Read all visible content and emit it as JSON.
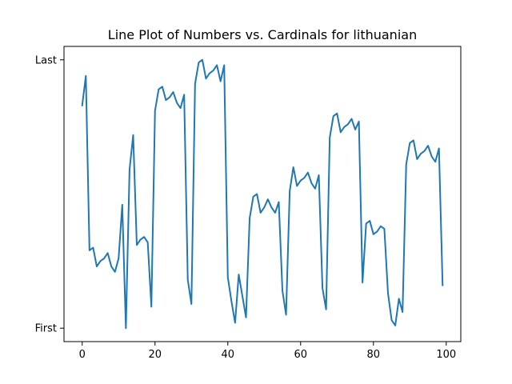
{
  "chart_data": {
    "type": "line",
    "title": "Line Plot of Numbers vs. Cardinals for lithuanian",
    "xlabel": "",
    "ylabel": "",
    "x_ticks": [
      0,
      20,
      40,
      60,
      80,
      100
    ],
    "x_tick_labels": [
      "0",
      "20",
      "40",
      "60",
      "80",
      "100"
    ],
    "y_tick_labels": [
      "First",
      "Last"
    ],
    "xlim": [
      -5,
      104
    ],
    "ylim": [
      -0.05,
      1.05
    ],
    "grid": false,
    "legend": "none",
    "line_color": "#1f77b4",
    "series": [
      {
        "x": [
          0,
          1,
          2,
          3,
          4,
          5,
          6,
          7,
          8,
          9,
          10,
          11,
          12,
          13,
          14,
          15,
          16,
          17,
          18,
          19,
          20,
          21,
          22,
          23,
          24,
          25,
          26,
          27,
          28,
          29,
          30,
          31,
          32,
          33,
          34,
          35,
          36,
          37,
          38,
          39,
          40,
          41,
          42,
          43,
          44,
          45,
          46,
          47,
          48,
          49,
          50,
          51,
          52,
          53,
          54,
          55,
          56,
          57,
          58,
          59,
          60,
          61,
          62,
          63,
          64,
          65,
          66,
          67,
          68,
          69,
          70,
          71,
          72,
          73,
          74,
          75,
          76,
          77,
          78,
          79,
          80,
          81,
          82,
          83,
          84,
          85,
          86,
          87,
          88,
          89,
          90,
          91,
          92,
          93,
          94,
          95,
          96,
          97,
          98,
          99
        ],
        "values": [
          0.83,
          0.94,
          0.29,
          0.3,
          0.23,
          0.25,
          0.26,
          0.28,
          0.23,
          0.21,
          0.26,
          0.46,
          0.0,
          0.59,
          0.72,
          0.31,
          0.33,
          0.34,
          0.32,
          0.08,
          0.81,
          0.89,
          0.9,
          0.85,
          0.86,
          0.88,
          0.84,
          0.82,
          0.87,
          0.18,
          0.09,
          0.91,
          0.99,
          1.0,
          0.93,
          0.95,
          0.96,
          0.98,
          0.92,
          0.98,
          0.19,
          0.1,
          0.02,
          0.2,
          0.12,
          0.04,
          0.41,
          0.49,
          0.5,
          0.43,
          0.45,
          0.48,
          0.45,
          0.43,
          0.47,
          0.14,
          0.05,
          0.51,
          0.6,
          0.53,
          0.55,
          0.56,
          0.58,
          0.54,
          0.52,
          0.57,
          0.15,
          0.07,
          0.71,
          0.79,
          0.8,
          0.73,
          0.75,
          0.76,
          0.78,
          0.74,
          0.77,
          0.17,
          0.39,
          0.4,
          0.35,
          0.36,
          0.38,
          0.37,
          0.13,
          0.03,
          0.01,
          0.11,
          0.06,
          0.61,
          0.69,
          0.7,
          0.63,
          0.65,
          0.66,
          0.68,
          0.64,
          0.62,
          0.67,
          0.16
        ]
      }
    ]
  }
}
